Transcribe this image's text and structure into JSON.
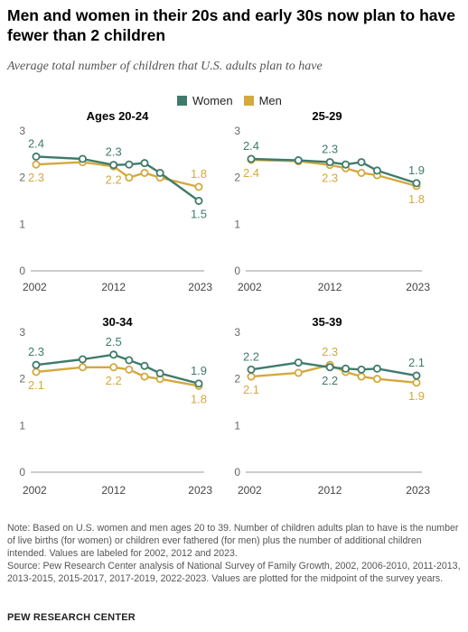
{
  "title": "Men and women in their 20s and early 30s now plan to have fewer than 2 children",
  "subtitle": "Average total number of children that U.S. adults plan to have",
  "legend": [
    {
      "name": "Women",
      "color": "#3f7b6c"
    },
    {
      "name": "Men",
      "color": "#d4a93d"
    }
  ],
  "note": "Note: Based on U.S. women and men ages 20 to 39. Number of children adults plan to have is the number of live births (for women) or children ever fathered (for men) plus the number of additional children intended. Values are labeled for 2002, 2012 and 2023.",
  "source": "Source: Pew Research Center analysis of National Survey of Family Growth, 2002, 2006-2010, 2011-2013, 2013-2015, 2015-2017, 2017-2019, 2022-2023. Values are plotted for the midpoint of the survey years.",
  "footer": "PEW RESEARCH CENTER",
  "chart_data": [
    {
      "type": "line",
      "title": "Ages 20-24",
      "x": [
        2002,
        2008,
        2012,
        2014,
        2016,
        2018,
        2023
      ],
      "series": [
        {
          "name": "Women",
          "values": [
            2.45,
            2.4,
            2.27,
            2.28,
            2.31,
            2.1,
            1.5
          ]
        },
        {
          "name": "Men",
          "values": [
            2.28,
            2.33,
            2.24,
            2.0,
            2.1,
            2.0,
            1.8
          ]
        }
      ],
      "labels": {
        "Women": [
          {
            "x": 2002,
            "text": "2.4"
          },
          {
            "x": 2012,
            "text": "2.3"
          },
          {
            "x": 2023,
            "text": "1.5"
          }
        ],
        "Men": [
          {
            "x": 2002,
            "text": "2.3"
          },
          {
            "x": 2012,
            "text": "2.2"
          },
          {
            "x": 2023,
            "text": "1.8"
          }
        ]
      },
      "yticks": [
        "0",
        "1",
        "2",
        "3"
      ],
      "xticks": [
        "2002",
        "2012",
        "2023"
      ],
      "ylim": [
        0,
        3
      ]
    },
    {
      "type": "line",
      "title": "25-29",
      "x": [
        2002,
        2008,
        2012,
        2014,
        2016,
        2018,
        2023
      ],
      "series": [
        {
          "name": "Women",
          "values": [
            2.4,
            2.37,
            2.33,
            2.28,
            2.33,
            2.15,
            1.88
          ]
        },
        {
          "name": "Men",
          "values": [
            2.38,
            2.35,
            2.27,
            2.2,
            2.1,
            2.05,
            1.82
          ]
        }
      ],
      "labels": {
        "Women": [
          {
            "x": 2002,
            "text": "2.4"
          },
          {
            "x": 2012,
            "text": "2.3"
          },
          {
            "x": 2023,
            "text": "1.9"
          }
        ],
        "Men": [
          {
            "x": 2002,
            "text": "2.4"
          },
          {
            "x": 2012,
            "text": "2.3"
          },
          {
            "x": 2023,
            "text": "1.8"
          }
        ]
      },
      "yticks": [
        "0",
        "1",
        "2",
        "3"
      ],
      "xticks": [
        "2002",
        "2012",
        "2023"
      ],
      "ylim": [
        0,
        3
      ]
    },
    {
      "type": "line",
      "title": "30-34",
      "x": [
        2002,
        2008,
        2012,
        2014,
        2016,
        2018,
        2023
      ],
      "series": [
        {
          "name": "Women",
          "values": [
            2.3,
            2.42,
            2.52,
            2.4,
            2.28,
            2.12,
            1.9
          ]
        },
        {
          "name": "Men",
          "values": [
            2.15,
            2.25,
            2.25,
            2.2,
            2.05,
            2.0,
            1.85
          ]
        }
      ],
      "labels": {
        "Women": [
          {
            "x": 2002,
            "text": "2.3"
          },
          {
            "x": 2012,
            "text": "2.5"
          },
          {
            "x": 2023,
            "text": "1.9"
          }
        ],
        "Men": [
          {
            "x": 2002,
            "text": "2.1"
          },
          {
            "x": 2012,
            "text": "2.2"
          },
          {
            "x": 2023,
            "text": "1.8"
          }
        ]
      },
      "yticks": [
        "0",
        "1",
        "2",
        "3"
      ],
      "xticks": [
        "2002",
        "2012",
        "2023"
      ],
      "ylim": [
        0,
        3
      ]
    },
    {
      "type": "line",
      "title": "35-39",
      "x": [
        2002,
        2008,
        2012,
        2014,
        2016,
        2018,
        2023
      ],
      "series": [
        {
          "name": "Women",
          "values": [
            2.2,
            2.35,
            2.25,
            2.22,
            2.2,
            2.22,
            2.07
          ]
        },
        {
          "name": "Men",
          "values": [
            2.05,
            2.13,
            2.3,
            2.15,
            2.05,
            2.0,
            1.92
          ]
        }
      ],
      "labels": {
        "Women": [
          {
            "x": 2002,
            "text": "2.2"
          },
          {
            "x": 2012,
            "text": "2.2"
          },
          {
            "x": 2023,
            "text": "2.1"
          }
        ],
        "Men": [
          {
            "x": 2002,
            "text": "2.1"
          },
          {
            "x": 2012,
            "text": "2.3"
          },
          {
            "x": 2023,
            "text": "1.9"
          }
        ]
      },
      "yticks": [
        "0",
        "1",
        "2",
        "3"
      ],
      "xticks": [
        "2002",
        "2012",
        "2023"
      ],
      "ylim": [
        0,
        3
      ]
    }
  ]
}
